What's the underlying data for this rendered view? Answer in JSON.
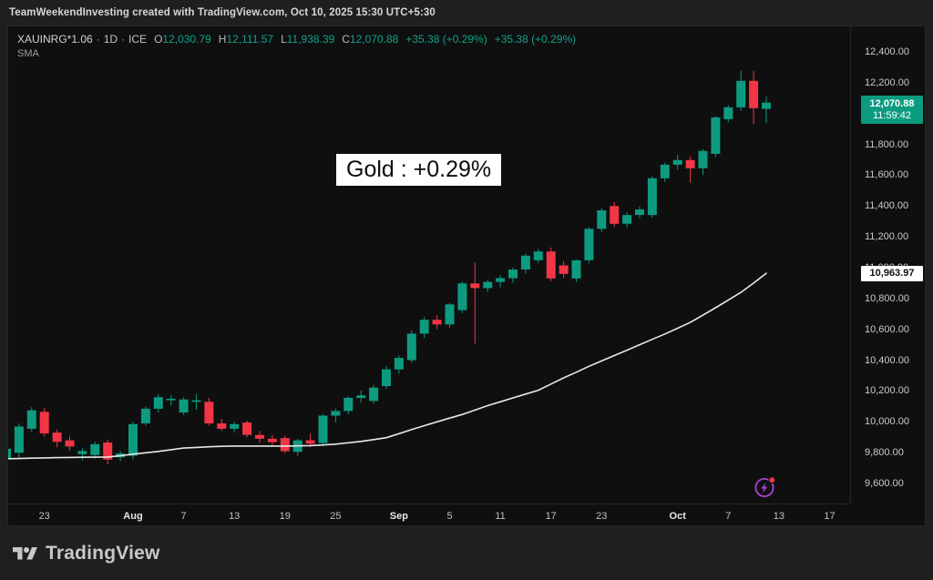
{
  "watermark": {
    "text": "TeamWeekendInvesting created with TradingView.com, Oct 10, 2025 15:30 UTC+5:30"
  },
  "header": {
    "symbol": "XAUINRG*1.06",
    "dot": "·",
    "interval": "1D",
    "exchange": "ICE",
    "o_label": "O",
    "o": "12,030.79",
    "h_label": "H",
    "h": "12,111.57",
    "l_label": "L",
    "l": "11,938.39",
    "c_label": "C",
    "c": "12,070.88",
    "change": "+35.38 (+0.29%)",
    "change2": "+35.38 (+0.29%)",
    "indicator": "SMA"
  },
  "overlay_label": "Gold : +0.29%",
  "last_price_badge": {
    "price": "12,070.88",
    "countdown": "11:59:42"
  },
  "sma_badge": {
    "value": "10,963.97"
  },
  "footer": {
    "logo_text": "TradingView"
  },
  "colors": {
    "up": "#0d9b80",
    "down": "#f23645",
    "sma_line": "#e8e8e8",
    "last_badge_bg": "#0d9b80",
    "sma_badge_bg": "#ffffff",
    "accent_purple": "#a341c9",
    "alert_dot": "#f23645",
    "chart_bg": "#0f0f10",
    "frame_bg": "#1f1f1f"
  },
  "chart_data": {
    "type": "candlestick",
    "title": "XAUINRG*1.06 1D ICE with SMA overlay",
    "legend": "SMA",
    "grid": false,
    "ylim": [
      9600,
      12400
    ],
    "last_price": 12070.88,
    "sma_last": 10963.97,
    "y_ticks": [
      {
        "v": 12400,
        "label": "12,400.00"
      },
      {
        "v": 12200,
        "label": "12,200.00"
      },
      {
        "v": 12000,
        "label": "12,000.00"
      },
      {
        "v": 11800,
        "label": "11,800.00"
      },
      {
        "v": 11600,
        "label": "11,600.00"
      },
      {
        "v": 11400,
        "label": "11,400.00"
      },
      {
        "v": 11200,
        "label": "11,200.00"
      },
      {
        "v": 11000,
        "label": "11,000.00"
      },
      {
        "v": 10800,
        "label": "10,800.00"
      },
      {
        "v": 10600,
        "label": "10,600.00"
      },
      {
        "v": 10400,
        "label": "10,400.00"
      },
      {
        "v": 10200,
        "label": "10,200.00"
      },
      {
        "v": 10000,
        "label": "10,000.00"
      },
      {
        "v": 9800,
        "label": "9,800.00"
      },
      {
        "v": 9600,
        "label": "9,600.00"
      }
    ],
    "x_ticks": [
      {
        "label": "23",
        "i": 3
      },
      {
        "label": "Aug",
        "i": 10,
        "major": true
      },
      {
        "label": "7",
        "i": 14
      },
      {
        "label": "13",
        "i": 18
      },
      {
        "label": "19",
        "i": 22
      },
      {
        "label": "25",
        "i": 26
      },
      {
        "label": "Sep",
        "i": 31,
        "major": true
      },
      {
        "label": "5",
        "i": 35
      },
      {
        "label": "11",
        "i": 39
      },
      {
        "label": "17",
        "i": 43
      },
      {
        "label": "23",
        "i": 47
      },
      {
        "label": "Oct",
        "i": 53,
        "major": true
      },
      {
        "label": "7",
        "i": 57
      },
      {
        "label": "13",
        "i": 61
      },
      {
        "label": "17",
        "i": 65
      }
    ],
    "dates": [
      "Jul 18",
      "Jul 21",
      "Jul 22",
      "Jul 23",
      "Jul 24",
      "Jul 25",
      "Jul 28",
      "Jul 29",
      "Jul 30",
      "Jul 31",
      "Aug 1",
      "Aug 4",
      "Aug 5",
      "Aug 6",
      "Aug 7",
      "Aug 8",
      "Aug 11",
      "Aug 12",
      "Aug 13",
      "Aug 14",
      "Aug 15",
      "Aug 18",
      "Aug 19",
      "Aug 20",
      "Aug 21",
      "Aug 22",
      "Aug 25",
      "Aug 26",
      "Aug 27",
      "Aug 28",
      "Aug 29",
      "Sep 1",
      "Sep 2",
      "Sep 3",
      "Sep 4",
      "Sep 5",
      "Sep 8",
      "Sep 9",
      "Sep 10",
      "Sep 11",
      "Sep 12",
      "Sep 15",
      "Sep 16",
      "Sep 17",
      "Sep 18",
      "Sep 19",
      "Sep 22",
      "Sep 23",
      "Sep 24",
      "Sep 25",
      "Sep 26",
      "Sep 29",
      "Sep 30",
      "Oct 1",
      "Oct 2",
      "Oct 3",
      "Oct 6",
      "Oct 7",
      "Oct 8",
      "Oct 9",
      "Oct 10"
    ],
    "candles": [
      [
        9765,
        9835,
        9735,
        9825
      ],
      [
        9800,
        9990,
        9765,
        9970
      ],
      [
        9955,
        10095,
        9935,
        10075
      ],
      [
        10065,
        10090,
        9905,
        9925
      ],
      [
        9930,
        9950,
        9835,
        9870
      ],
      [
        9880,
        9905,
        9815,
        9840
      ],
      [
        9790,
        9830,
        9750,
        9810
      ],
      [
        9785,
        9870,
        9760,
        9855
      ],
      [
        9865,
        9885,
        9725,
        9755
      ],
      [
        9770,
        9810,
        9745,
        9795
      ],
      [
        9780,
        10000,
        9755,
        9985
      ],
      [
        9990,
        10100,
        9975,
        10085
      ],
      [
        10085,
        10180,
        10060,
        10160
      ],
      [
        10140,
        10175,
        10105,
        10150
      ],
      [
        10060,
        10160,
        10045,
        10145
      ],
      [
        10130,
        10180,
        10080,
        10140
      ],
      [
        10130,
        10155,
        9975,
        9990
      ],
      [
        9990,
        10020,
        9940,
        9955
      ],
      [
        9955,
        10000,
        9930,
        9985
      ],
      [
        9995,
        10010,
        9900,
        9915
      ],
      [
        9915,
        9940,
        9865,
        9890
      ],
      [
        9890,
        9915,
        9845,
        9868
      ],
      [
        9895,
        9910,
        9795,
        9810
      ],
      [
        9805,
        9890,
        9780,
        9880
      ],
      [
        9880,
        9925,
        9835,
        9858
      ],
      [
        9862,
        10050,
        9848,
        10040
      ],
      [
        10040,
        10085,
        9995,
        10070
      ],
      [
        10070,
        10165,
        10050,
        10155
      ],
      [
        10155,
        10205,
        10125,
        10172
      ],
      [
        10135,
        10240,
        10115,
        10222
      ],
      [
        10232,
        10362,
        10212,
        10340
      ],
      [
        10340,
        10432,
        10312,
        10415
      ],
      [
        10400,
        10592,
        10382,
        10572
      ],
      [
        10572,
        10682,
        10545,
        10662
      ],
      [
        10662,
        10692,
        10602,
        10632
      ],
      [
        10632,
        10772,
        10612,
        10762
      ],
      [
        10725,
        10910,
        10705,
        10898
      ],
      [
        10898,
        11035,
        10508,
        10868
      ],
      [
        10868,
        10922,
        10842,
        10908
      ],
      [
        10908,
        10952,
        10872,
        10932
      ],
      [
        10932,
        11002,
        10902,
        10988
      ],
      [
        10988,
        11092,
        10962,
        11078
      ],
      [
        11048,
        11122,
        11028,
        11105
      ],
      [
        11105,
        11132,
        10912,
        10930
      ],
      [
        11015,
        11042,
        10932,
        10960
      ],
      [
        10930,
        11052,
        10908,
        11048
      ],
      [
        11048,
        11262,
        11028,
        11252
      ],
      [
        11252,
        11388,
        11232,
        11372
      ],
      [
        11400,
        11425,
        11262,
        11285
      ],
      [
        11285,
        11358,
        11262,
        11342
      ],
      [
        11342,
        11398,
        11322,
        11378
      ],
      [
        11342,
        11592,
        11325,
        11580
      ],
      [
        11580,
        11682,
        11555,
        11668
      ],
      [
        11668,
        11732,
        11635,
        11698
      ],
      [
        11698,
        11722,
        11552,
        11645
      ],
      [
        11645,
        11768,
        11602,
        11758
      ],
      [
        11738,
        11985,
        11718,
        11975
      ],
      [
        11963,
        12055,
        11942,
        12040
      ],
      [
        12040,
        12278,
        12018,
        12212
      ],
      [
        12212,
        12278,
        11932,
        12035
      ],
      [
        12030.79,
        12111.57,
        11938.39,
        12070.88
      ]
    ],
    "sma": [
      9760,
      9762,
      9764,
      9766,
      9768,
      9769,
      9770,
      9771,
      9772,
      9780,
      9790,
      9799,
      9808,
      9819,
      9830,
      9834,
      9838,
      9841,
      9843,
      9843,
      9843,
      9843,
      9843,
      9844,
      9846,
      9850,
      9855,
      9864,
      9873,
      9885,
      9897,
      9923,
      9950,
      9975,
      10000,
      10024,
      10048,
      10076,
      10105,
      10130,
      10155,
      10180,
      10205,
      10245,
      10285,
      10322,
      10360,
      10395,
      10430,
      10465,
      10500,
      10535,
      10570,
      10607,
      10645,
      10692,
      10740,
      10790,
      10840,
      10900,
      10963.97
    ]
  }
}
